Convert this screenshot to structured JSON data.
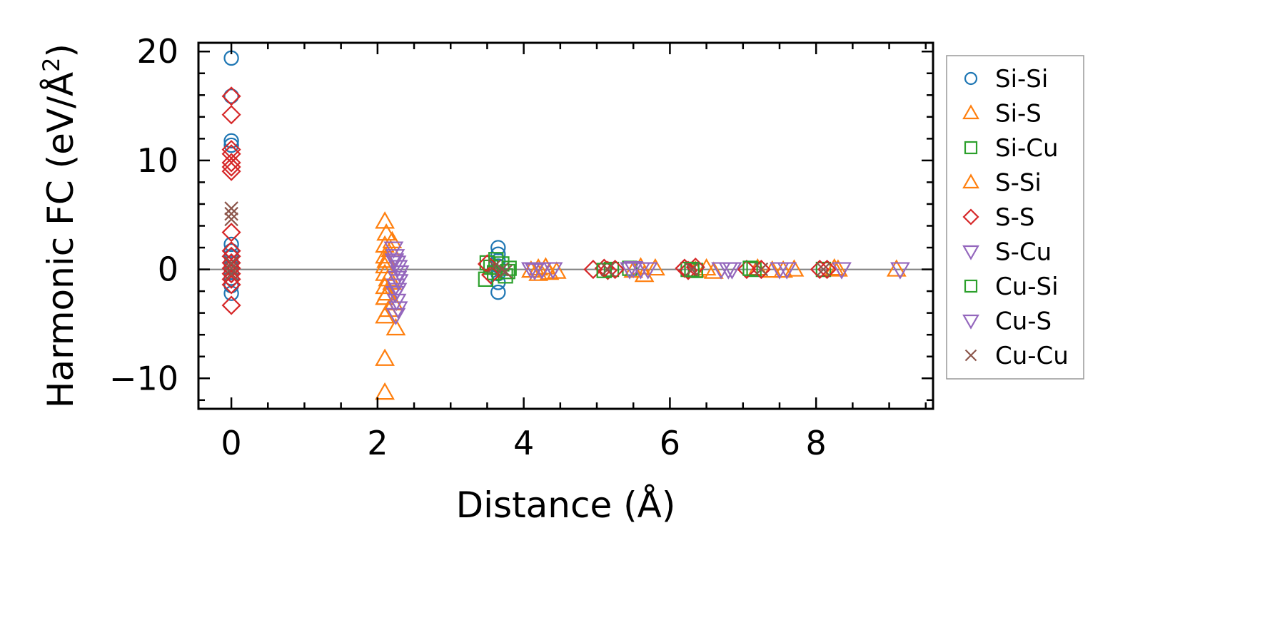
{
  "chart_data": {
    "type": "scatter",
    "title": "",
    "xlabel": "Distance (Å)",
    "ylabel": "Harmonic FC (eV/Å",
    "ylabel_sup": "2",
    "ylabel_close": ")",
    "xlim": [
      -0.45,
      9.6
    ],
    "ylim": [
      -12.8,
      20.8
    ],
    "xticks": [
      0,
      2,
      4,
      6,
      8
    ],
    "xtick_labels": [
      "0",
      "2",
      "4",
      "6",
      "8"
    ],
    "yticks": [
      -10,
      0,
      10,
      20
    ],
    "ytick_labels": [
      "−10",
      "0",
      "10",
      "20"
    ],
    "zero_line": 0,
    "legend_position": "outside-right",
    "series": [
      {
        "name": "Si-Si",
        "marker": "circle",
        "color": "#1f77b4",
        "points": [
          [
            0,
            19.4
          ],
          [
            0,
            15.9
          ],
          [
            0,
            11.8
          ],
          [
            0,
            11.4
          ],
          [
            0,
            2.3
          ],
          [
            0,
            1.7
          ],
          [
            0,
            1.2
          ],
          [
            0,
            0.6
          ],
          [
            0,
            0.2
          ],
          [
            0,
            -0.3
          ],
          [
            0,
            -0.8
          ],
          [
            0,
            -1.5
          ],
          [
            0,
            -2.2
          ],
          [
            3.65,
            2.0
          ],
          [
            3.65,
            1.4
          ],
          [
            3.65,
            0.8
          ],
          [
            3.65,
            0.3
          ],
          [
            3.65,
            -0.4
          ],
          [
            3.65,
            -1.2
          ],
          [
            3.65,
            -2.1
          ]
        ]
      },
      {
        "name": "Si-S",
        "marker": "triangle-up",
        "color": "#ff7f0e",
        "points": [
          [
            2.1,
            4.4
          ],
          [
            2.1,
            2.2
          ],
          [
            2.1,
            1.2
          ],
          [
            2.1,
            0.3
          ],
          [
            2.1,
            -0.4
          ],
          [
            2.1,
            -1.6
          ],
          [
            2.1,
            -2.6
          ],
          [
            2.1,
            -4.3
          ],
          [
            2.1,
            -8.2
          ],
          [
            2.1,
            -11.3
          ],
          [
            2.14,
            -0.9
          ],
          [
            2.2,
            2.6
          ],
          [
            2.2,
            -1.2
          ],
          [
            2.22,
            -3.1
          ],
          [
            2.25,
            -5.4
          ],
          [
            4.1,
            -0.1
          ],
          [
            4.2,
            0.1
          ],
          [
            4.3,
            0.2
          ],
          [
            4.45,
            -0.2
          ],
          [
            5.5,
            -0.1
          ],
          [
            5.6,
            0.2
          ],
          [
            5.8,
            0.1
          ],
          [
            6.35,
            -0.1
          ],
          [
            6.5,
            0.1
          ],
          [
            7.2,
            0.1
          ],
          [
            7.55,
            -0.1
          ],
          [
            7.7,
            0.0
          ],
          [
            8.3,
            0.0
          ],
          [
            9.1,
            0.0
          ]
        ]
      },
      {
        "name": "Si-Cu",
        "marker": "square",
        "color": "#2ca02c",
        "points": [
          [
            3.5,
            0.6
          ],
          [
            3.55,
            0.2
          ],
          [
            3.6,
            -0.3
          ],
          [
            3.7,
            0.5
          ],
          [
            3.75,
            -0.6
          ],
          [
            3.8,
            0.1
          ],
          [
            5.2,
            0.0
          ],
          [
            5.45,
            0.1
          ],
          [
            6.25,
            0.0
          ],
          [
            6.35,
            -0.1
          ],
          [
            7.15,
            0.0
          ],
          [
            8.1,
            0.0
          ]
        ]
      },
      {
        "name": "S-Si",
        "marker": "triangle-up",
        "color": "#ff7f0e",
        "points": [
          [
            2.12,
            3.3
          ],
          [
            2.12,
            0.8
          ],
          [
            2.13,
            -2.2
          ],
          [
            2.15,
            -3.7
          ],
          [
            2.18,
            1.8
          ],
          [
            4.2,
            -0.4
          ],
          [
            4.35,
            -0.3
          ],
          [
            5.65,
            -0.5
          ],
          [
            6.6,
            -0.2
          ],
          [
            7.4,
            -0.1
          ],
          [
            8.25,
            0.1
          ]
        ]
      },
      {
        "name": "S-S",
        "marker": "diamond",
        "color": "#d62728",
        "points": [
          [
            0,
            15.9
          ],
          [
            0,
            14.2
          ],
          [
            0,
            11.0
          ],
          [
            0,
            10.6
          ],
          [
            0,
            9.8
          ],
          [
            0,
            9.4
          ],
          [
            0,
            9.0
          ],
          [
            0,
            3.4
          ],
          [
            0,
            1.7
          ],
          [
            0,
            1.2
          ],
          [
            0,
            0.6
          ],
          [
            0,
            0.1
          ],
          [
            0,
            -0.4
          ],
          [
            0,
            -0.9
          ],
          [
            0,
            -1.4
          ],
          [
            0,
            -3.3
          ],
          [
            3.5,
            0.5
          ],
          [
            3.55,
            -0.5
          ],
          [
            4.95,
            0.0
          ],
          [
            5.1,
            0.1
          ],
          [
            5.15,
            -0.1
          ],
          [
            5.25,
            0.0
          ],
          [
            6.2,
            0.1
          ],
          [
            6.25,
            -0.1
          ],
          [
            6.35,
            0.2
          ],
          [
            7.05,
            0.0
          ],
          [
            7.25,
            0.0
          ],
          [
            8.05,
            0.0
          ],
          [
            8.15,
            0.0
          ]
        ]
      },
      {
        "name": "S-Cu",
        "marker": "triangle-down",
        "color": "#9467bd",
        "points": [
          [
            2.22,
            1.9
          ],
          [
            2.24,
            1.2
          ],
          [
            2.26,
            0.6
          ],
          [
            2.28,
            0.2
          ],
          [
            2.3,
            -0.3
          ],
          [
            2.27,
            -0.8
          ],
          [
            2.25,
            -1.5
          ],
          [
            2.24,
            -2.2
          ],
          [
            2.26,
            -2.9
          ],
          [
            2.28,
            -3.6
          ],
          [
            2.25,
            -4.2
          ],
          [
            4.1,
            0.0
          ],
          [
            4.25,
            0.0
          ],
          [
            4.4,
            0.0
          ],
          [
            5.45,
            0.0
          ],
          [
            5.6,
            0.0
          ],
          [
            5.7,
            0.0
          ],
          [
            6.7,
            0.0
          ],
          [
            6.85,
            0.0
          ],
          [
            7.6,
            0.0
          ],
          [
            8.35,
            0.0
          ],
          [
            9.15,
            0.0
          ]
        ]
      },
      {
        "name": "Cu-Si",
        "marker": "square",
        "color": "#2ca02c",
        "points": [
          [
            3.48,
            -0.9
          ],
          [
            3.62,
            0.9
          ],
          [
            3.78,
            -0.2
          ],
          [
            5.1,
            -0.1
          ],
          [
            6.3,
            0.0
          ],
          [
            7.1,
            0.1
          ]
        ]
      },
      {
        "name": "Cu-S",
        "marker": "triangle-down",
        "color": "#9467bd",
        "points": [
          [
            2.23,
            0.8
          ],
          [
            2.29,
            -1.1
          ],
          [
            2.27,
            -1.9
          ],
          [
            4.15,
            -0.1
          ],
          [
            5.5,
            0.1
          ],
          [
            6.8,
            0.0
          ],
          [
            7.5,
            0.0
          ]
        ]
      },
      {
        "name": "Cu-Cu",
        "marker": "x",
        "color": "#8c564b",
        "points": [
          [
            0,
            5.6
          ],
          [
            0,
            5.1
          ],
          [
            0,
            4.6
          ],
          [
            0,
            0.6
          ],
          [
            0,
            0.1
          ],
          [
            0,
            -0.4
          ],
          [
            3.7,
            0.0
          ],
          [
            3.6,
            0.3
          ],
          [
            3.75,
            -0.2
          ],
          [
            5.15,
            0.0
          ],
          [
            6.3,
            0.0
          ],
          [
            7.25,
            0.0
          ],
          [
            8.1,
            0.0
          ]
        ]
      }
    ]
  }
}
